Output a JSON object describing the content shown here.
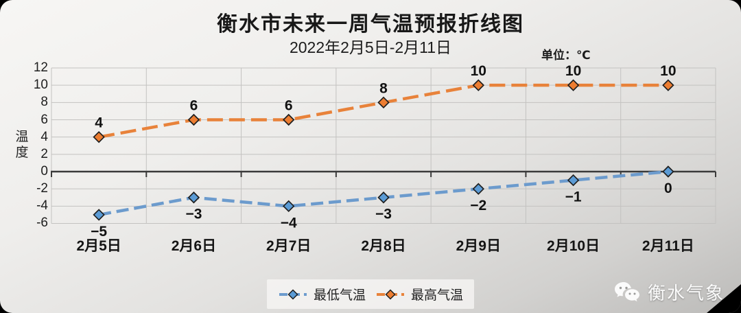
{
  "header": {
    "title": "衡水市未来一周气温预报折线图",
    "subtitle": "2022年2月5日-2月11日",
    "unit_label": "单位：℃"
  },
  "chart_data": {
    "type": "line",
    "title": "衡水市未来一周气温预报折线图",
    "subtitle": "2022年2月5日-2月11日",
    "unit": "℃",
    "ylabel": "温度",
    "xlabel": "",
    "categories": [
      "2月5日",
      "2月6日",
      "2月7日",
      "2月8日",
      "2月9日",
      "2月10日",
      "2月11日"
    ],
    "series": [
      {
        "name": "最低气温",
        "marker_color": "#5B9BD5",
        "line_color": "#6C9BCD",
        "values": [
          -5,
          -3,
          -4,
          -3,
          -2,
          -1,
          0
        ],
        "label_position": "below",
        "dash": "18 8"
      },
      {
        "name": "最高气温",
        "marker_color": "#ED7D31",
        "line_color": "#E8823A",
        "values": [
          4,
          6,
          6,
          8,
          10,
          10,
          10
        ],
        "label_position": "above",
        "dash": "23 9"
      }
    ],
    "ylim": [
      -6,
      12
    ],
    "yticks": [
      12,
      10,
      8,
      6,
      4,
      2,
      0,
      -2,
      -4,
      -6
    ],
    "grid": true,
    "line_style": "dashed",
    "legend_position": "bottom-center"
  },
  "legend": {
    "items": [
      {
        "label": "最低气温",
        "color": "#5B9BD5",
        "line_color": "#6C9BCD"
      },
      {
        "label": "最高气温",
        "color": "#ED7D31",
        "line_color": "#E8823A"
      }
    ]
  },
  "watermark": {
    "text": "衡水气象",
    "icon": "wechat-icon"
  },
  "colors": {
    "grid": "#c3c2c0",
    "zero_axis": "#3a3a3a",
    "text": "#1c1c1c",
    "marker_outline": "#1f1f1f",
    "background_top": "#f7f6f4",
    "background_bottom": "#bcbbb9"
  }
}
